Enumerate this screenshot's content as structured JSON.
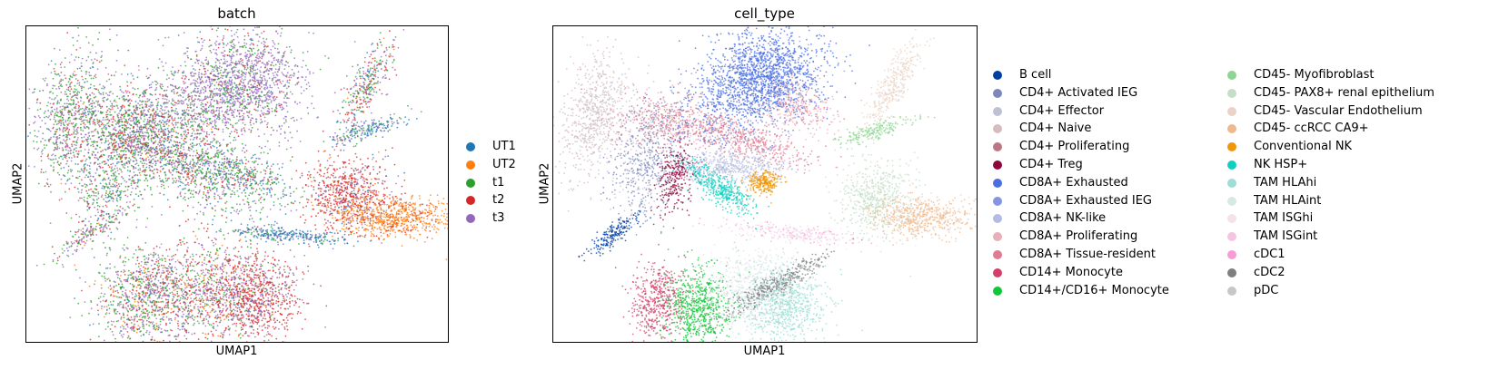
{
  "chart_data": [
    {
      "type": "scatter",
      "title": "batch",
      "xlabel": "UMAP1",
      "ylabel": "UMAP2",
      "legend_position": "right",
      "grid": false,
      "series": [
        {
          "name": "UT1",
          "color": "#1f77b4"
        },
        {
          "name": "UT2",
          "color": "#ff7f0e"
        },
        {
          "name": "t1",
          "color": "#2ca02c"
        },
        {
          "name": "t2",
          "color": "#d62728"
        },
        {
          "name": "t3",
          "color": "#9467bd"
        }
      ]
    },
    {
      "type": "scatter",
      "title": "cell_type",
      "xlabel": "UMAP1",
      "ylabel": "UMAP2",
      "legend_position": "right",
      "grid": false,
      "series": [
        {
          "name": "B cell",
          "color": "#023fa5"
        },
        {
          "name": "CD4+ Activated IEG",
          "color": "#7d87b9"
        },
        {
          "name": "CD4+ Effector",
          "color": "#bec1d4"
        },
        {
          "name": "CD4+ Naive",
          "color": "#d6bcc0"
        },
        {
          "name": "CD4+ Proliferating",
          "color": "#bb7784"
        },
        {
          "name": "CD4+ Treg",
          "color": "#8e063b"
        },
        {
          "name": "CD8A+ Exhausted",
          "color": "#4a6fe3"
        },
        {
          "name": "CD8A+ Exhausted IEG",
          "color": "#8595e1"
        },
        {
          "name": "CD8A+ NK-like",
          "color": "#b5bbe3"
        },
        {
          "name": "CD8A+ Proliferating",
          "color": "#e6afb9"
        },
        {
          "name": "CD8A+ Tissue-resident",
          "color": "#e07b91"
        },
        {
          "name": "CD14+ Monocyte",
          "color": "#d33f6a"
        },
        {
          "name": "CD14+/CD16+ Monocyte",
          "color": "#11c638"
        },
        {
          "name": "CD45- Myofibroblast",
          "color": "#8dd593"
        },
        {
          "name": "CD45- PAX8+ renal epithelium",
          "color": "#c6dec7"
        },
        {
          "name": "CD45- Vascular Endothelium",
          "color": "#ead3c6"
        },
        {
          "name": "CD45- ccRCC CA9+",
          "color": "#f0b98d"
        },
        {
          "name": "Conventional NK",
          "color": "#ef9708"
        },
        {
          "name": "NK HSP+",
          "color": "#0fcfc0"
        },
        {
          "name": "TAM HLAhi",
          "color": "#9cded6"
        },
        {
          "name": "TAM HLAint",
          "color": "#d5eae7"
        },
        {
          "name": "TAM ISGhi",
          "color": "#f3e1eb"
        },
        {
          "name": "TAM ISGint",
          "color": "#f6c4e1"
        },
        {
          "name": "cDC1",
          "color": "#f79cd4"
        },
        {
          "name": "cDC2",
          "color": "#7f7f7f"
        },
        {
          "name": "pDC",
          "color": "#c7c7c7"
        }
      ]
    }
  ]
}
